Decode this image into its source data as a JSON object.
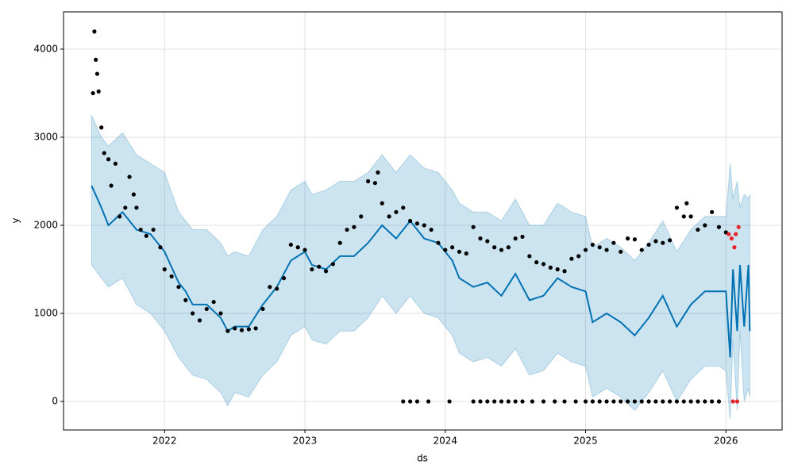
{
  "chart_data": {
    "type": "forecast",
    "xlabel": "ds",
    "ylabel": "y",
    "xlim": [
      2021.28,
      2026.4
    ],
    "ylim": [
      -324,
      4423
    ],
    "xticks": [
      2022,
      2023,
      2024,
      2025,
      2026
    ],
    "yticks": [
      0,
      1000,
      2000,
      3000,
      4000
    ],
    "grid": true,
    "band": {
      "color": "#0072b2",
      "x": [
        2021.48,
        2021.55,
        2021.6,
        2021.7,
        2021.8,
        2021.9,
        2022.0,
        2022.1,
        2022.15,
        2022.2,
        2022.3,
        2022.4,
        2022.45,
        2022.5,
        2022.6,
        2022.7,
        2022.8,
        2022.9,
        2023.0,
        2023.05,
        2023.15,
        2023.25,
        2023.35,
        2023.45,
        2023.55,
        2023.65,
        2023.75,
        2023.85,
        2023.95,
        2024.05,
        2024.1,
        2024.2,
        2024.3,
        2024.4,
        2024.5,
        2024.6,
        2024.7,
        2024.8,
        2024.9,
        2025.0,
        2025.05,
        2025.15,
        2025.25,
        2025.35,
        2025.45,
        2025.55,
        2025.65,
        2025.75,
        2025.85,
        2025.95,
        2026.0,
        2026.03,
        2026.05,
        2026.08,
        2026.1,
        2026.13,
        2026.16,
        2026.17
      ],
      "lower": [
        1550,
        1400,
        1300,
        1400,
        1100,
        1000,
        800,
        500,
        400,
        300,
        250,
        100,
        -50,
        100,
        50,
        300,
        450,
        750,
        850,
        700,
        650,
        800,
        800,
        950,
        1200,
        1000,
        1200,
        1000,
        950,
        750,
        550,
        450,
        500,
        400,
        600,
        300,
        350,
        550,
        450,
        400,
        50,
        150,
        50,
        -100,
        100,
        350,
        0,
        250,
        400,
        400,
        350,
        -200,
        700,
        -100,
        800,
        0,
        150,
        50
      ],
      "upper": [
        3250,
        3000,
        2900,
        3050,
        2800,
        2700,
        2600,
        2150,
        2050,
        1950,
        1950,
        1800,
        1650,
        1700,
        1650,
        1950,
        2100,
        2400,
        2500,
        2350,
        2400,
        2500,
        2500,
        2600,
        2800,
        2600,
        2800,
        2650,
        2600,
        2400,
        2250,
        2150,
        2150,
        2050,
        2300,
        2000,
        2000,
        2250,
        2150,
        2100,
        1750,
        1850,
        1750,
        1600,
        1800,
        2050,
        1700,
        1950,
        2100,
        2100,
        2100,
        2700,
        2300,
        2500,
        2200,
        2350,
        2300,
        2350
      ]
    },
    "series": [
      {
        "style": "line",
        "color": "#0072b2",
        "x": [
          2021.48,
          2021.55,
          2021.6,
          2021.7,
          2021.8,
          2021.9,
          2022.0,
          2022.1,
          2022.15,
          2022.2,
          2022.3,
          2022.4,
          2022.45,
          2022.5,
          2022.6,
          2022.7,
          2022.8,
          2022.9,
          2023.0,
          2023.05,
          2023.15,
          2023.25,
          2023.35,
          2023.45,
          2023.55,
          2023.65,
          2023.75,
          2023.85,
          2023.95,
          2024.05,
          2024.1,
          2024.2,
          2024.3,
          2024.4,
          2024.5,
          2024.6,
          2024.7,
          2024.8,
          2024.9,
          2025.0,
          2025.05,
          2025.15,
          2025.25,
          2025.35,
          2025.45,
          2025.55,
          2025.65,
          2025.75,
          2025.85,
          2025.95,
          2026.0,
          2026.03,
          2026.05,
          2026.08,
          2026.1,
          2026.13,
          2026.16,
          2026.17
        ],
        "values": [
          2450,
          2200,
          2000,
          2150,
          1950,
          1900,
          1700,
          1350,
          1250,
          1100,
          1100,
          950,
          800,
          850,
          850,
          1100,
          1300,
          1600,
          1700,
          1550,
          1500,
          1650,
          1650,
          1800,
          2000,
          1850,
          2050,
          1850,
          1800,
          1600,
          1400,
          1300,
          1350,
          1200,
          1450,
          1150,
          1200,
          1400,
          1300,
          1250,
          900,
          1000,
          900,
          750,
          950,
          1200,
          850,
          1100,
          1250,
          1250,
          1250,
          500,
          1500,
          800,
          1550,
          850,
          1550,
          800
        ]
      },
      {
        "style": "points",
        "color": "#000000",
        "x": [
          2021.49,
          2021.5,
          2021.51,
          2021.52,
          2021.53,
          2021.55,
          2021.57,
          2021.6,
          2021.62,
          2021.65,
          2021.68,
          2021.72,
          2021.75,
          2021.78,
          2021.8,
          2021.83,
          2021.87,
          2021.92,
          2021.97,
          2022.0,
          2022.05,
          2022.1,
          2022.15,
          2022.2,
          2022.25,
          2022.3,
          2022.35,
          2022.4,
          2022.45,
          2022.5,
          2022.55,
          2022.6,
          2022.65,
          2022.7,
          2022.75,
          2022.8,
          2022.85,
          2022.9,
          2022.95,
          2023.0,
          2023.05,
          2023.1,
          2023.15,
          2023.2,
          2023.25,
          2023.3,
          2023.35,
          2023.4,
          2023.45,
          2023.5,
          2023.52,
          2023.55,
          2023.6,
          2023.65,
          2023.7,
          2023.75,
          2023.8,
          2023.85,
          2023.9,
          2023.95,
          2024.0,
          2024.05,
          2024.1,
          2024.15,
          2024.2,
          2024.25,
          2024.3,
          2024.35,
          2024.4,
          2024.45,
          2024.5,
          2024.55,
          2024.6,
          2024.65,
          2024.7,
          2024.75,
          2024.8,
          2024.85,
          2024.9,
          2024.95,
          2025.0,
          2025.05,
          2025.1,
          2025.15,
          2025.2,
          2025.25,
          2025.3,
          2025.35,
          2025.4,
          2025.45,
          2025.5,
          2025.55,
          2025.6,
          2025.65,
          2025.7,
          2025.72,
          2025.75,
          2025.8,
          2025.85,
          2025.9,
          2025.95,
          2026.0,
          2023.7,
          2023.75,
          2023.8,
          2023.88,
          2024.03,
          2024.2,
          2024.25,
          2024.3,
          2024.35,
          2024.4,
          2024.45,
          2024.5,
          2024.55,
          2024.62,
          2024.7,
          2024.78,
          2024.85,
          2024.93,
          2025.0,
          2025.05,
          2025.1,
          2025.15,
          2025.2,
          2025.25,
          2025.3,
          2025.35,
          2025.4,
          2025.45,
          2025.5,
          2025.55,
          2025.6,
          2025.65,
          2025.7,
          2025.75,
          2025.8,
          2025.85,
          2025.9,
          2025.95
        ],
        "values": [
          3500,
          4200,
          3880,
          3720,
          3520,
          3110,
          2820,
          2750,
          2450,
          2700,
          2100,
          2200,
          2550,
          2350,
          2200,
          1950,
          1880,
          1950,
          1750,
          1500,
          1420,
          1300,
          1150,
          1000,
          920,
          1050,
          1130,
          1000,
          800,
          830,
          810,
          820,
          830,
          1050,
          1300,
          1280,
          1400,
          1780,
          1750,
          1720,
          1500,
          1530,
          1480,
          1560,
          1800,
          1950,
          1980,
          2100,
          2500,
          2480,
          2600,
          2250,
          2100,
          2150,
          2200,
          2050,
          2020,
          2000,
          1950,
          1800,
          1720,
          1750,
          1700,
          1680,
          1980,
          1850,
          1820,
          1750,
          1720,
          1750,
          1850,
          1870,
          1650,
          1580,
          1560,
          1520,
          1500,
          1480,
          1620,
          1650,
          1720,
          1780,
          1750,
          1720,
          1800,
          1700,
          1850,
          1840,
          1720,
          1780,
          1820,
          1800,
          1830,
          2200,
          2100,
          2250,
          2100,
          1950,
          2000,
          2150,
          1980,
          1920,
          0,
          0,
          0,
          0,
          0,
          0,
          0,
          0,
          0,
          0,
          0,
          0,
          0,
          0,
          0,
          0,
          0,
          0,
          0,
          0,
          0,
          0,
          0,
          0,
          0,
          0,
          0,
          0,
          0,
          0,
          0,
          0,
          0,
          0,
          0,
          0,
          0,
          0
        ]
      },
      {
        "style": "points",
        "color": "#e8232b",
        "x": [
          2026.02,
          2026.04,
          2026.06,
          2026.07,
          2026.09,
          2026.05,
          2026.08
        ],
        "values": [
          1900,
          1850,
          1750,
          1900,
          1980,
          0,
          0
        ]
      }
    ]
  }
}
